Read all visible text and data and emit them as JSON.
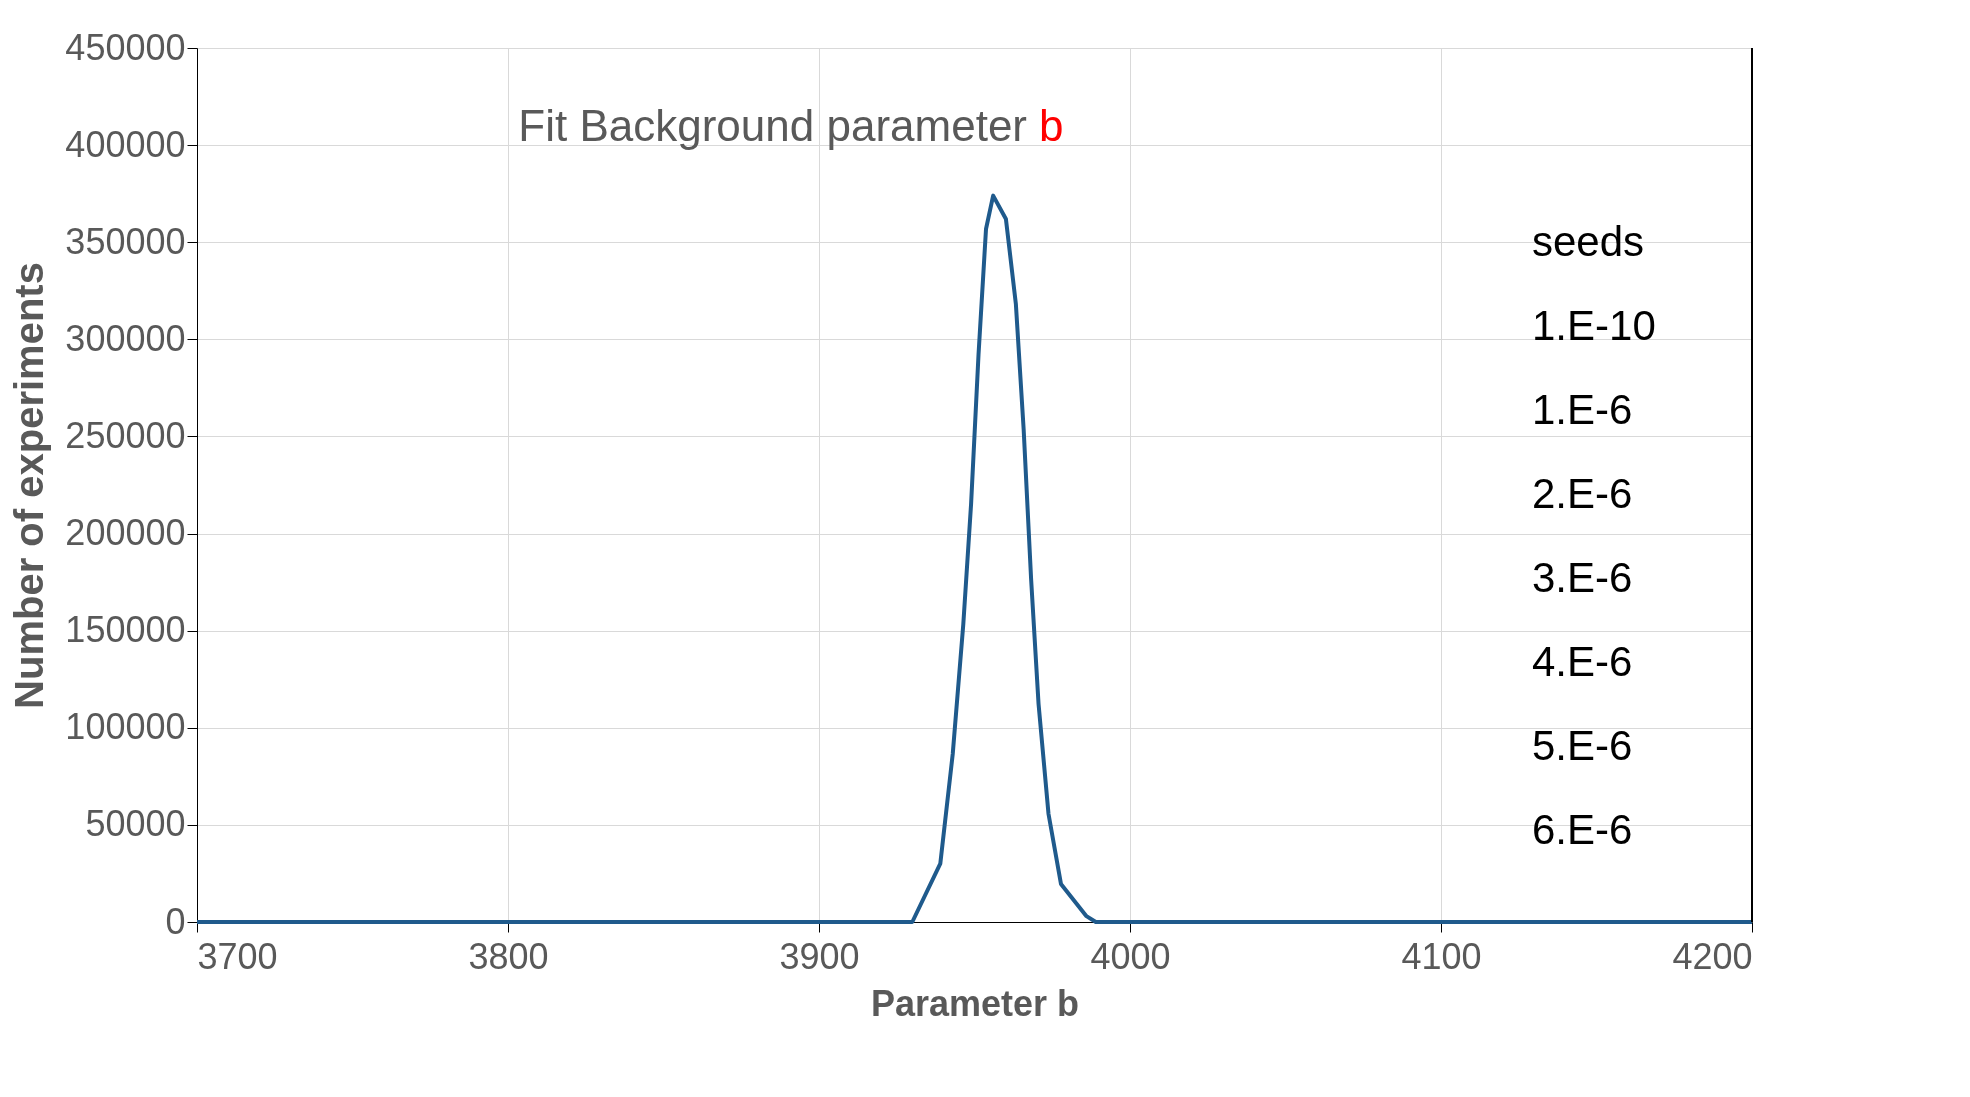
{
  "chart_data": {
    "type": "line",
    "title": "Fit Background parameter b",
    "xlabel": "Parameter b",
    "ylabel": "Number of experiments",
    "x": [
      3700,
      3930,
      3939,
      3943,
      3946.4,
      3948.9,
      3951.3,
      3953.7,
      3956,
      3960.1,
      3963.3,
      3965.8,
      3968.2,
      3970.6,
      3973.8,
      3977.8,
      3986,
      3989,
      4200
    ],
    "series": [
      {
        "color": "#1f5a8c",
        "values": [
          0,
          0,
          30000,
          86500,
          153400,
          215200,
          292400,
          356800,
          374000,
          362000,
          318200,
          253800,
          176600,
          112200,
          55600,
          19600,
          3000,
          0,
          0
        ]
      }
    ],
    "xlim": [
      3700,
      4200
    ],
    "xticks": [
      3700,
      3800,
      3900,
      4000,
      4100,
      4200
    ],
    "ylim": [
      0,
      450000
    ],
    "yticks": [
      0,
      50000,
      100000,
      150000,
      200000,
      250000,
      300000,
      350000,
      400000,
      450000
    ],
    "grid": true,
    "marker": "none",
    "line_style": "solid",
    "annotations": [
      "seeds",
      "1.E-10",
      "1.E-6",
      "2.E-6",
      "3.E-6",
      "4.E-6",
      "5.E-6",
      "6.E-6"
    ]
  }
}
